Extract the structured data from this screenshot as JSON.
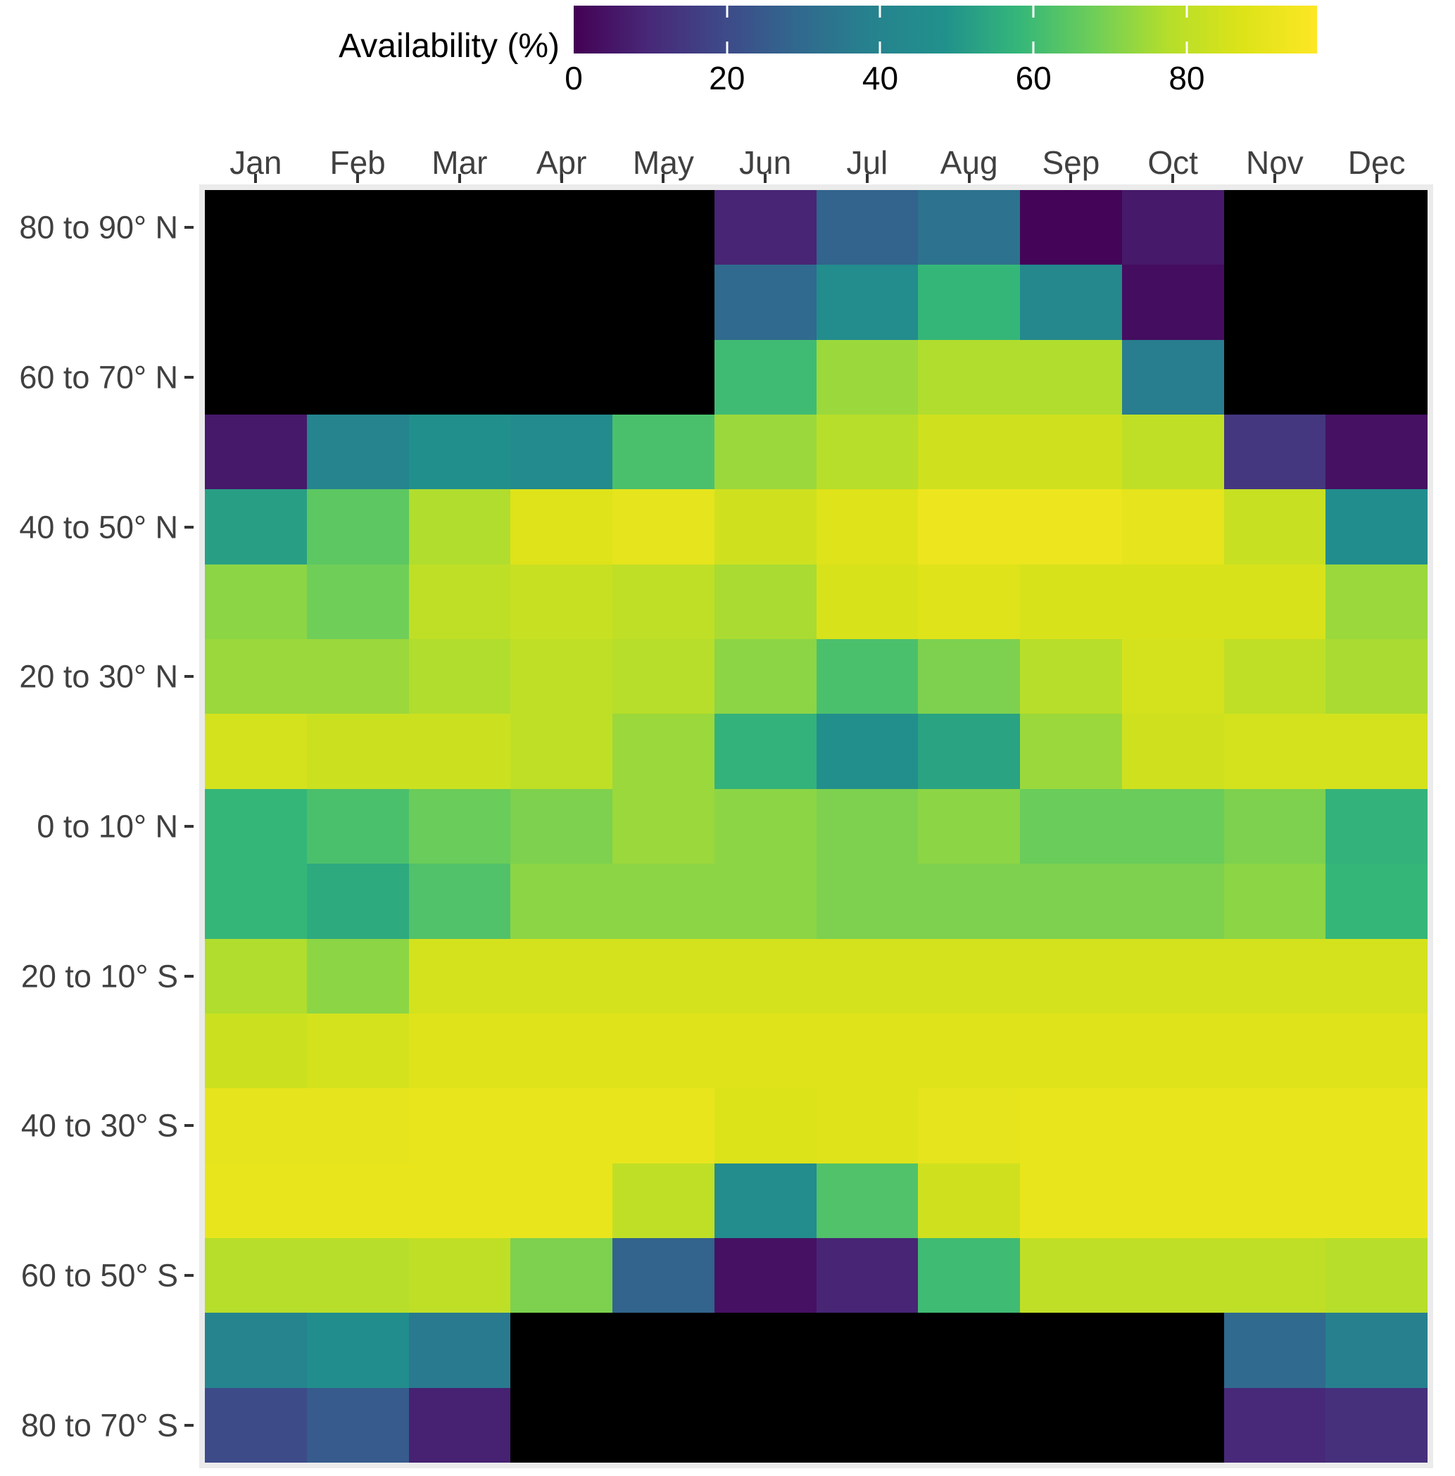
{
  "chart_data": {
    "type": "heatmap",
    "legend_title": "Availability (%)",
    "legend_ticks": [
      0,
      20,
      40,
      60,
      80
    ],
    "x_categories": [
      "Jan",
      "Feb",
      "Mar",
      "Apr",
      "May",
      "Jun",
      "Jul",
      "Aug",
      "Sep",
      "Oct",
      "Nov",
      "Dec"
    ],
    "y_tick_labels": [
      "80 to 90° N",
      "60 to 70° N",
      "40 to 50° N",
      "20 to 30° N",
      "0 to 10° N",
      "20 to 10° S",
      "40 to 30° S",
      "60 to 50° S",
      "80 to 70° S"
    ],
    "colorscale": {
      "palette": "viridis",
      "domain": [
        0,
        97
      ],
      "na_color": "#000000",
      "stops": [
        "#440154",
        "#482878",
        "#3e4989",
        "#31688e",
        "#26828e",
        "#21918c",
        "#35b779",
        "#6ece58",
        "#b5de2b",
        "#dde318",
        "#fde725"
      ]
    },
    "rows": [
      {
        "label": "80 to 90° N",
        "values": [
          null,
          null,
          null,
          null,
          null,
          9,
          28,
          33,
          1,
          6,
          null,
          null
        ]
      },
      {
        "label": "",
        "values": [
          null,
          null,
          null,
          null,
          null,
          30,
          45,
          58,
          43,
          3,
          null,
          null
        ]
      },
      {
        "label": "60 to 70° N",
        "values": [
          null,
          null,
          null,
          null,
          null,
          60,
          74,
          77,
          77,
          37,
          null,
          null
        ]
      },
      {
        "label": "",
        "values": [
          6,
          40,
          48,
          44,
          62,
          74,
          78,
          84,
          84,
          80,
          14,
          4
        ]
      },
      {
        "label": "40 to 50° N",
        "values": [
          52,
          65,
          77,
          88,
          90,
          84,
          88,
          92,
          92,
          90,
          82,
          46
        ]
      },
      {
        "label": "",
        "values": [
          72,
          68,
          80,
          82,
          80,
          76,
          86,
          88,
          86,
          86,
          86,
          74
        ]
      },
      {
        "label": "20 to 30° N",
        "values": [
          74,
          74,
          77,
          80,
          78,
          72,
          62,
          70,
          78,
          85,
          80,
          76
        ]
      },
      {
        "label": "",
        "values": [
          85,
          83,
          83,
          80,
          74,
          57,
          47,
          53,
          74,
          84,
          85,
          85
        ]
      },
      {
        "label": "0 to 10° N",
        "values": [
          58,
          62,
          67,
          70,
          74,
          72,
          70,
          72,
          67,
          67,
          70,
          57
        ]
      },
      {
        "label": "",
        "values": [
          58,
          55,
          63,
          72,
          72,
          72,
          70,
          70,
          70,
          70,
          72,
          58
        ]
      },
      {
        "label": "20 to 10° S",
        "values": [
          77,
          72,
          85,
          85,
          85,
          85,
          85,
          85,
          85,
          85,
          85,
          85
        ]
      },
      {
        "label": "",
        "values": [
          83,
          85,
          88,
          88,
          88,
          88,
          88,
          88,
          88,
          88,
          88,
          88
        ]
      },
      {
        "label": "40 to 30° S",
        "values": [
          90,
          90,
          91,
          91,
          91,
          87,
          88,
          90,
          91,
          91,
          91,
          91
        ]
      },
      {
        "label": "",
        "values": [
          91,
          91,
          91,
          91,
          80,
          45,
          63,
          84,
          91,
          91,
          91,
          91
        ]
      },
      {
        "label": "60 to 50° S",
        "values": [
          78,
          78,
          80,
          70,
          28,
          4,
          9,
          60,
          80,
          80,
          80,
          78
        ]
      },
      {
        "label": "",
        "values": [
          40,
          46,
          36,
          null,
          null,
          null,
          null,
          null,
          null,
          null,
          30,
          38
        ]
      },
      {
        "label": "80 to 70° S",
        "values": [
          20,
          25,
          8,
          null,
          null,
          null,
          null,
          null,
          null,
          null,
          10,
          12
        ]
      }
    ]
  }
}
